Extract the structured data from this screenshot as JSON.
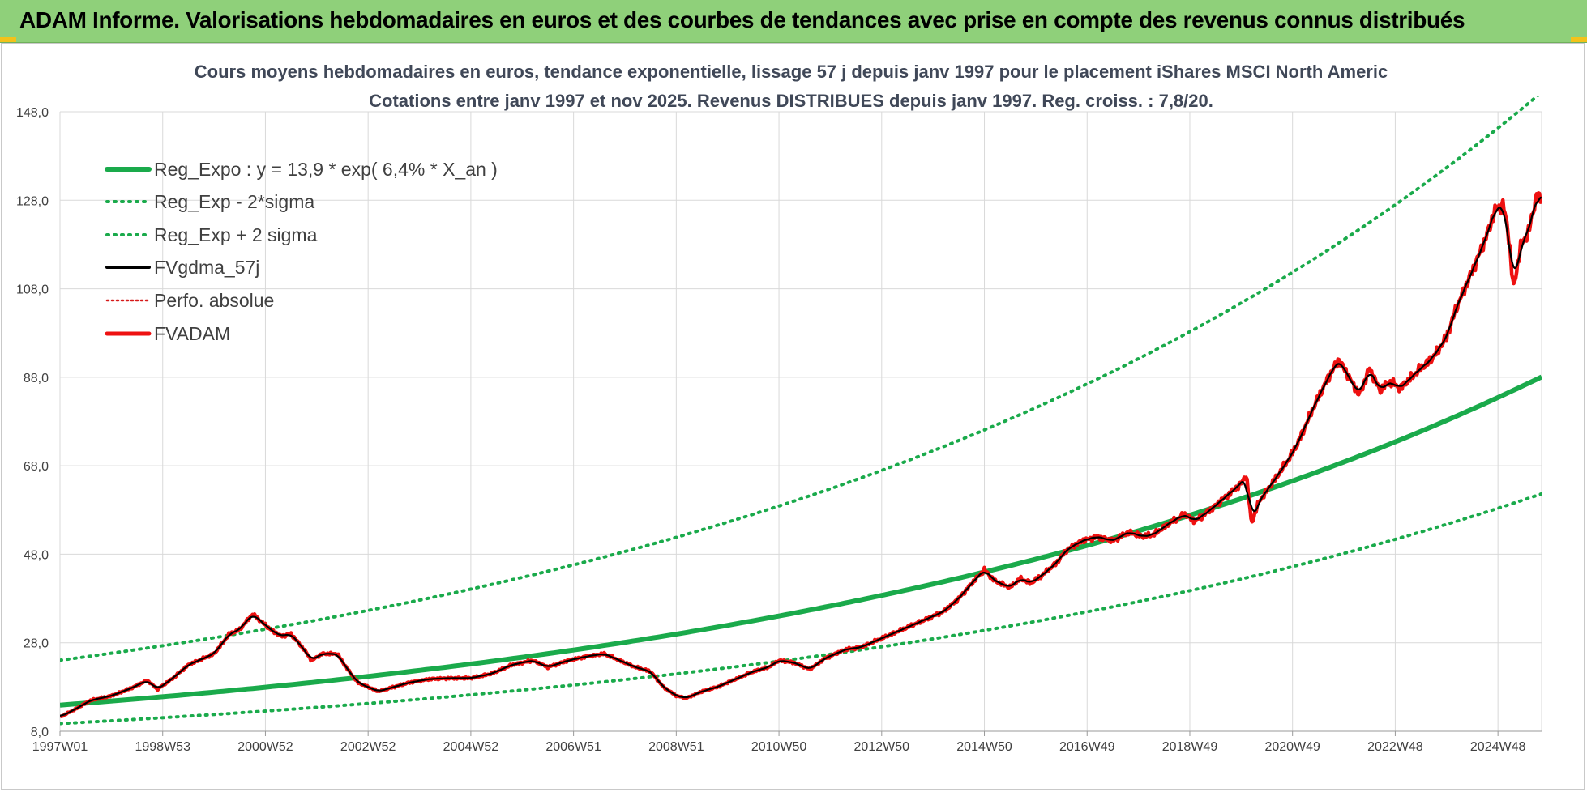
{
  "banner": {
    "title": "ADAM Informe. Valorisations hebdomadaires en euros et des courbes de tendances avec prise en compte des revenus connus distribués"
  },
  "colors": {
    "banner_bg": "#8fd07a",
    "trend_green": "#1aaa4b",
    "adam_red": "#ee1111",
    "gdma_black": "#000000",
    "perfo_red": "#d61a1a",
    "grid": "#d9d9d9"
  },
  "chart_data": {
    "type": "line",
    "title_lines": [
      "Cours moyens hebdomadaires en euros, tendance exponentielle, lissage 57 j depuis janv 1997 pour le placement iShares MSCI North Americ",
      "Cotations entre janv 1997 et nov 2025. Revenus DISTRIBUES depuis janv 1997. Reg. croiss. : 7,8/20."
    ],
    "ylim": [
      8,
      148
    ],
    "y_ticks": [
      "8,0",
      "28,0",
      "48,0",
      "68,0",
      "88,0",
      "108,0",
      "128,0",
      "148,0"
    ],
    "x_range_years": [
      1997.0,
      2025.85
    ],
    "x_ticks": [
      {
        "year": 1997.0,
        "label": "1997W01"
      },
      {
        "year": 1999.0,
        "label": "1998W53"
      },
      {
        "year": 2001.0,
        "label": "2000W52"
      },
      {
        "year": 2003.0,
        "label": "2002W52"
      },
      {
        "year": 2005.0,
        "label": "2004W52"
      },
      {
        "year": 2007.0,
        "label": "2006W51"
      },
      {
        "year": 2009.0,
        "label": "2008W51"
      },
      {
        "year": 2011.0,
        "label": "2010W50"
      },
      {
        "year": 2013.0,
        "label": "2012W50"
      },
      {
        "year": 2015.0,
        "label": "2014W50"
      },
      {
        "year": 2017.0,
        "label": "2016W49"
      },
      {
        "year": 2019.0,
        "label": "2018W49"
      },
      {
        "year": 2021.0,
        "label": "2020W49"
      },
      {
        "year": 2023.0,
        "label": "2022W48"
      },
      {
        "year": 2025.0,
        "label": "2024W48"
      }
    ],
    "grid": true,
    "legend_position": "top-left",
    "regression": {
      "a": 13.9,
      "rate_percent": 6.4,
      "low_factor": 0.7,
      "high_factor": 1.73
    },
    "series": [
      {
        "name": "Reg_Expo : y = 13,9 * exp( 6,4% *  X_an )",
        "style": "solid-thick",
        "color": "#1aaa4b"
      },
      {
        "name": "Reg_Exp - 2*sigma",
        "style": "dotted",
        "color": "#1aaa4b"
      },
      {
        "name": "Reg_Exp + 2 sigma",
        "style": "dotted",
        "color": "#1aaa4b"
      },
      {
        "name": "FVgdma_57j",
        "style": "solid",
        "color": "#000000"
      },
      {
        "name": "Perfo. absolue",
        "style": "dotted",
        "color": "#d61a1a"
      },
      {
        "name": "FVADAM",
        "style": "solid-thick",
        "color": "#ee1111",
        "points": [
          [
            1997.0,
            11.2
          ],
          [
            1997.3,
            13.0
          ],
          [
            1997.6,
            15.0
          ],
          [
            1998.0,
            16.0
          ],
          [
            1998.4,
            17.8
          ],
          [
            1998.7,
            19.5
          ],
          [
            1998.9,
            17.5
          ],
          [
            1999.2,
            20.0
          ],
          [
            1999.5,
            23.0
          ],
          [
            1999.8,
            24.5
          ],
          [
            2000.0,
            25.5
          ],
          [
            2000.3,
            30.0
          ],
          [
            2000.5,
            31.0
          ],
          [
            2000.75,
            34.5
          ],
          [
            2000.9,
            33.0
          ],
          [
            2001.1,
            31.0
          ],
          [
            2001.3,
            29.5
          ],
          [
            2001.5,
            30.0
          ],
          [
            2001.75,
            26.5
          ],
          [
            2001.9,
            24.0
          ],
          [
            2002.1,
            25.5
          ],
          [
            2002.4,
            25.5
          ],
          [
            2002.6,
            22.0
          ],
          [
            2002.8,
            19.0
          ],
          [
            2003.0,
            18.0
          ],
          [
            2003.2,
            17.0
          ],
          [
            2003.5,
            18.0
          ],
          [
            2003.8,
            19.0
          ],
          [
            2004.2,
            19.8
          ],
          [
            2004.6,
            20.0
          ],
          [
            2005.0,
            20.0
          ],
          [
            2005.4,
            21.0
          ],
          [
            2005.8,
            23.0
          ],
          [
            2006.2,
            24.0
          ],
          [
            2006.5,
            22.5
          ],
          [
            2006.9,
            24.0
          ],
          [
            2007.3,
            25.0
          ],
          [
            2007.6,
            25.5
          ],
          [
            2007.9,
            24.0
          ],
          [
            2008.2,
            22.5
          ],
          [
            2008.5,
            21.5
          ],
          [
            2008.75,
            18.0
          ],
          [
            2009.0,
            16.0
          ],
          [
            2009.2,
            15.5
          ],
          [
            2009.5,
            17.0
          ],
          [
            2009.8,
            18.0
          ],
          [
            2010.2,
            20.0
          ],
          [
            2010.5,
            21.5
          ],
          [
            2010.8,
            22.5
          ],
          [
            2011.0,
            24.0
          ],
          [
            2011.3,
            23.5
          ],
          [
            2011.6,
            22.0
          ],
          [
            2011.9,
            24.5
          ],
          [
            2012.3,
            26.5
          ],
          [
            2012.6,
            27.0
          ],
          [
            2012.9,
            28.5
          ],
          [
            2013.3,
            30.5
          ],
          [
            2013.6,
            32.0
          ],
          [
            2013.9,
            33.5
          ],
          [
            2014.2,
            35.0
          ],
          [
            2014.5,
            38.0
          ],
          [
            2014.8,
            42.0
          ],
          [
            2015.0,
            44.5
          ],
          [
            2015.2,
            42.0
          ],
          [
            2015.5,
            40.5
          ],
          [
            2015.7,
            42.5
          ],
          [
            2015.9,
            41.5
          ],
          [
            2016.1,
            43.0
          ],
          [
            2016.4,
            46.0
          ],
          [
            2016.6,
            49.0
          ],
          [
            2016.9,
            51.0
          ],
          [
            2017.2,
            52.0
          ],
          [
            2017.5,
            51.0
          ],
          [
            2017.8,
            53.0
          ],
          [
            2018.1,
            52.0
          ],
          [
            2018.3,
            52.5
          ],
          [
            2018.6,
            55.0
          ],
          [
            2018.9,
            57.0
          ],
          [
            2019.1,
            55.5
          ],
          [
            2019.4,
            58.0
          ],
          [
            2019.7,
            61.0
          ],
          [
            2020.0,
            64.0
          ],
          [
            2020.1,
            66.0
          ],
          [
            2020.2,
            55.0
          ],
          [
            2020.35,
            60.0
          ],
          [
            2020.6,
            64.0
          ],
          [
            2020.9,
            69.0
          ],
          [
            2021.1,
            73.0
          ],
          [
            2021.4,
            81.0
          ],
          [
            2021.7,
            88.0
          ],
          [
            2021.9,
            92.0
          ],
          [
            2022.1,
            88.0
          ],
          [
            2022.3,
            84.0
          ],
          [
            2022.5,
            90.0
          ],
          [
            2022.7,
            85.0
          ],
          [
            2022.9,
            87.0
          ],
          [
            2023.1,
            85.5
          ],
          [
            2023.4,
            89.0
          ],
          [
            2023.7,
            92.0
          ],
          [
            2024.0,
            97.0
          ],
          [
            2024.2,
            104.0
          ],
          [
            2024.5,
            112.0
          ],
          [
            2024.75,
            119.0
          ],
          [
            2024.95,
            126.0
          ],
          [
            2025.1,
            127.0
          ],
          [
            2025.2,
            121.0
          ],
          [
            2025.3,
            108.0
          ],
          [
            2025.45,
            118.0
          ],
          [
            2025.6,
            121.0
          ],
          [
            2025.75,
            129.0
          ],
          [
            2025.85,
            128.0
          ]
        ]
      }
    ]
  }
}
